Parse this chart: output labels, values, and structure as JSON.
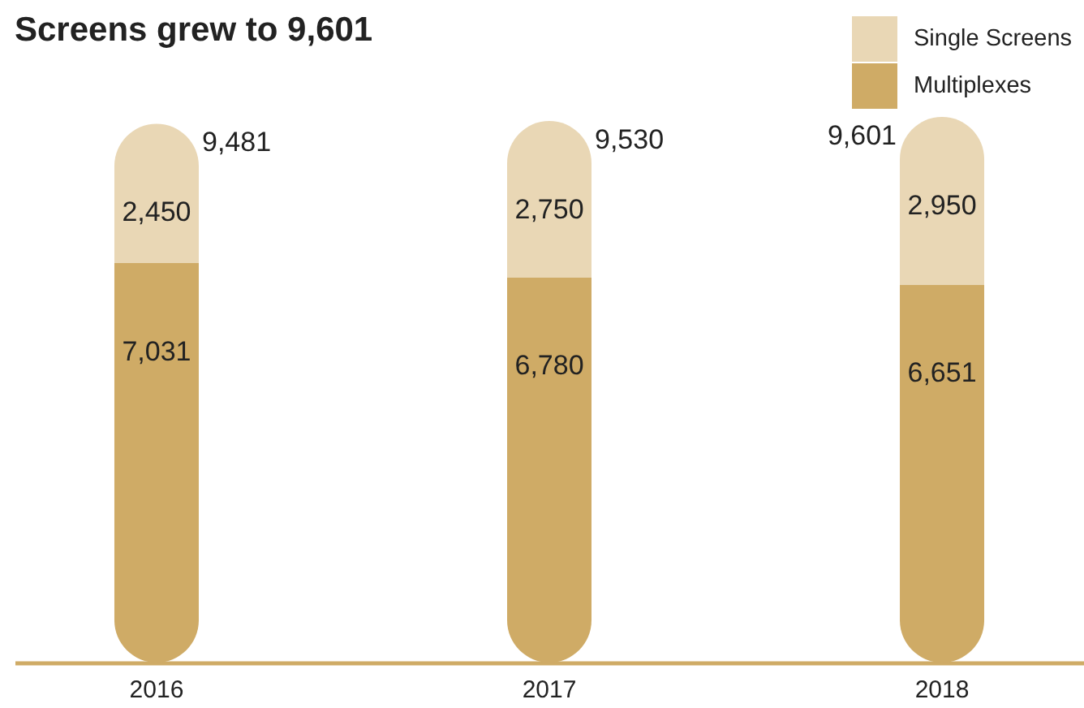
{
  "chart_data": {
    "type": "bar",
    "title": "Screens grew to 9,601",
    "categories": [
      "2016",
      "2017",
      "2018"
    ],
    "stacked": true,
    "series": [
      {
        "name": "Multiplexes",
        "color": "#cfab66",
        "values": [
          7031,
          6780,
          6651
        ],
        "value_labels": [
          "7,031",
          "6,780",
          "6,651"
        ]
      },
      {
        "name": "Single Screens",
        "color": "#e9d7b5",
        "values": [
          2450,
          2750,
          2950
        ],
        "value_labels": [
          "2,450",
          "2,750",
          "2,950"
        ]
      }
    ],
    "totals": [
      "9,481",
      "9,530",
      "9,601"
    ],
    "legend": "top right"
  }
}
